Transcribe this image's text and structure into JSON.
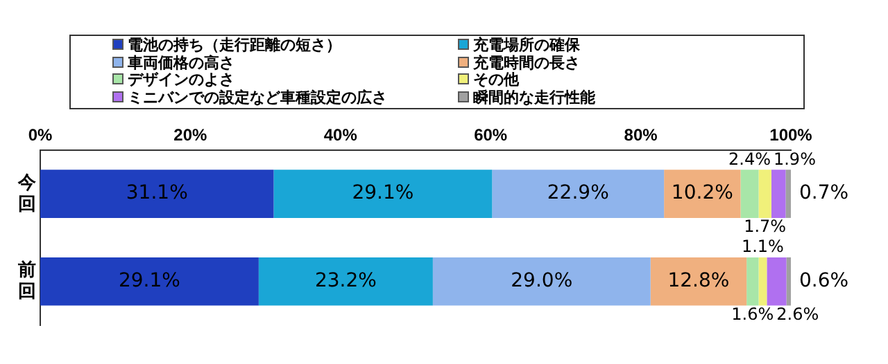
{
  "chart_data": {
    "type": "bar",
    "orientation": "horizontal",
    "stacked": true,
    "categories": [
      "今回",
      "前回"
    ],
    "xlim": [
      0,
      100
    ],
    "xticks": [
      {
        "value": 0,
        "label": "0%"
      },
      {
        "value": 20,
        "label": "20%"
      },
      {
        "value": 40,
        "label": "40%"
      },
      {
        "value": 60,
        "label": "60%"
      },
      {
        "value": 80,
        "label": "80%"
      },
      {
        "value": 100,
        "label": "100%"
      }
    ],
    "grid": false,
    "legend": "top",
    "series": [
      {
        "name": "電池の持ち（走行距離の短さ）",
        "color": "#1f3fbf",
        "values": [
          31.1,
          29.1
        ],
        "value_labels": [
          "31.1%",
          "29.1%"
        ]
      },
      {
        "name": "充電場所の確保",
        "color": "#1aa6d6",
        "values": [
          29.1,
          23.2
        ],
        "value_labels": [
          "29.1%",
          "23.2%"
        ]
      },
      {
        "name": "車両価格の高さ",
        "color": "#8fb4ec",
        "values": [
          22.9,
          29.0
        ],
        "value_labels": [
          "22.9%",
          "29.0%"
        ]
      },
      {
        "name": "充電時間の長さ",
        "color": "#f0b07f",
        "values": [
          10.2,
          12.8
        ],
        "value_labels": [
          "10.2%",
          "12.8%"
        ]
      },
      {
        "name": "デザインのよさ",
        "color": "#a8e6a8",
        "values": [
          2.4,
          1.6
        ],
        "value_labels": [
          "2.4%",
          "1.6%"
        ]
      },
      {
        "name": "その他",
        "color": "#f0f07a",
        "values": [
          1.7,
          1.1
        ],
        "value_labels": [
          "1.7%",
          "1.1%"
        ]
      },
      {
        "name": "ミニバンでの設定など車種設定の広さ",
        "color": "#b070f0",
        "values": [
          1.9,
          2.6
        ],
        "value_labels": [
          "1.9%",
          "2.6%"
        ]
      },
      {
        "name": "瞬間的な走行性能",
        "color": "#a0a0a0",
        "values": [
          0.7,
          0.6
        ],
        "value_labels": [
          "0.7%",
          "0.6%"
        ]
      }
    ]
  }
}
